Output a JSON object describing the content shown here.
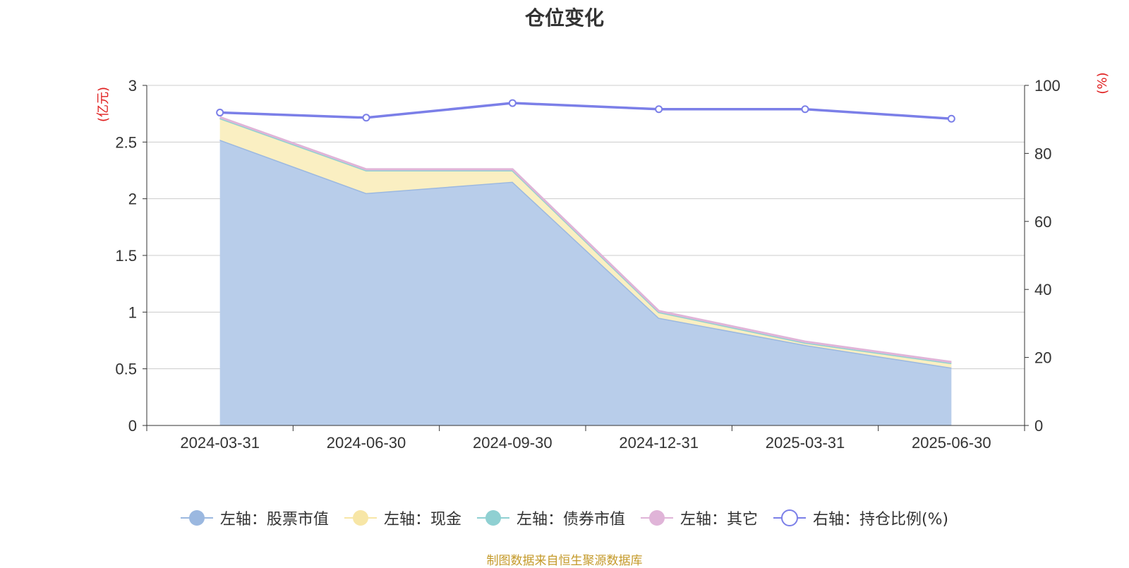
{
  "chart_data": {
    "type": "area",
    "title": "仓位变化",
    "left_axis_unit": "(亿元)",
    "right_axis_unit": "(%)",
    "categories": [
      "2024-03-31",
      "2024-06-30",
      "2024-09-30",
      "2024-12-31",
      "2025-03-31",
      "2025-06-30"
    ],
    "left_ylim": [
      0,
      3
    ],
    "left_ticks": [
      "0",
      "0.5",
      "1",
      "1.5",
      "2",
      "2.5",
      "3"
    ],
    "right_ylim": [
      0,
      100
    ],
    "right_ticks": [
      "0",
      "20",
      "40",
      "60",
      "80",
      "100"
    ],
    "grid": true,
    "legend_position": "bottom",
    "series": [
      {
        "name": "左轴：股票市值",
        "axis": "left",
        "kind": "stacked-area",
        "color": "#9bb8e0",
        "fill": "#b8cdea",
        "values": [
          2.52,
          2.05,
          2.15,
          0.95,
          0.71,
          0.51
        ]
      },
      {
        "name": "左轴：现金",
        "axis": "left",
        "kind": "stacked-area",
        "color": "#f7e6a6",
        "fill": "#faefc2",
        "values": [
          0.19,
          0.2,
          0.1,
          0.05,
          0.02,
          0.04
        ]
      },
      {
        "name": "左轴：债券市值",
        "axis": "left",
        "kind": "stacked-area",
        "color": "#8fd0d2",
        "fill": "#b6e0e1",
        "values": [
          0,
          0,
          0,
          0,
          0,
          0
        ]
      },
      {
        "name": "左轴：其它",
        "axis": "left",
        "kind": "stacked-area",
        "color": "#e0b4d8",
        "fill": "#edcfe8",
        "values": [
          0.01,
          0.01,
          0.01,
          0.01,
          0.01,
          0.01
        ]
      },
      {
        "name": "右轴：持仓比例(%)",
        "axis": "right",
        "kind": "line",
        "color": "#7b7fe8",
        "values": [
          92,
          90.5,
          94.8,
          93,
          93,
          90.2
        ]
      }
    ]
  },
  "source_note": "制图数据来自恒生聚源数据库"
}
